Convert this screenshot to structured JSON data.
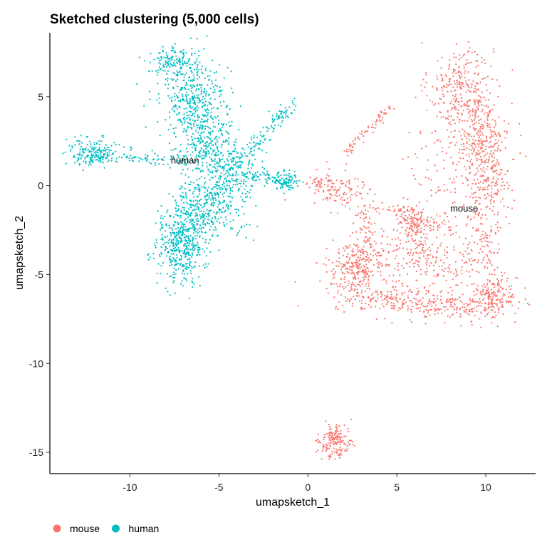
{
  "chart_data": {
    "type": "scatter",
    "title": "Sketched clustering (5,000 cells)",
    "xlabel": "umapsketch_1",
    "ylabel": "umapsketch_2",
    "xlim": [
      -14.5,
      12.8
    ],
    "ylim": [
      -16.2,
      8.6
    ],
    "xticks": [
      -10,
      -5,
      0,
      5,
      10
    ],
    "yticks": [
      5,
      0,
      -5,
      -10,
      -15
    ],
    "xtick_labels": [
      "-10",
      "-5",
      "0",
      "5",
      "10"
    ],
    "ytick_labels": [
      "5",
      "0",
      "-5",
      "-10",
      "-15"
    ],
    "grid": false,
    "legend_position": "bottom-left",
    "series": [
      {
        "name": "mouse",
        "color": "#F8766D",
        "label_point": [
          8.0,
          -1.3
        ],
        "approx_point_count": 2500,
        "clusters": [
          {
            "cx": 8.6,
            "cy": 5.5,
            "sx": 0.9,
            "sy": 1.3,
            "n": 260
          },
          {
            "cx": 9.6,
            "cy": 3.0,
            "sx": 0.9,
            "sy": 1.5,
            "n": 280
          },
          {
            "cx": 10.2,
            "cy": 0.6,
            "sx": 0.6,
            "sy": 1.2,
            "n": 180
          },
          {
            "cx": 9.9,
            "cy": -2.5,
            "sx": 0.5,
            "sy": 1.3,
            "n": 110
          },
          {
            "cx": 10.4,
            "cy": -6.3,
            "sx": 0.7,
            "sy": 0.6,
            "n": 200
          },
          {
            "cx": 7.8,
            "cy": -6.8,
            "sx": 1.4,
            "sy": 0.4,
            "n": 160
          },
          {
            "cx": 4.6,
            "cy": -6.3,
            "sx": 1.5,
            "sy": 0.4,
            "n": 170
          },
          {
            "cx": 2.6,
            "cy": -4.8,
            "sx": 0.8,
            "sy": 0.7,
            "n": 220
          },
          {
            "cx": 3.2,
            "cy": -2.9,
            "sx": 0.4,
            "sy": 1.1,
            "n": 100
          },
          {
            "cx": 1.6,
            "cy": -0.2,
            "sx": 0.9,
            "sy": 0.6,
            "n": 110
          },
          {
            "cx": 5.9,
            "cy": -2.2,
            "sx": 0.5,
            "sy": 0.5,
            "n": 100
          },
          {
            "cx": 5.2,
            "cy": -4.0,
            "sx": 1.4,
            "sy": 0.7,
            "n": 130
          },
          {
            "cx": 7.2,
            "cy": -0.3,
            "sx": 1.4,
            "sy": 2.1,
            "n": 110
          },
          {
            "cx": 8.0,
            "cy": -4.6,
            "sx": 1.0,
            "sy": 0.6,
            "n": 70
          },
          {
            "cx": 1.6,
            "cy": -14.4,
            "sx": 0.45,
            "sy": 0.45,
            "n": 170
          }
        ],
        "segments": [
          {
            "x1": 2.0,
            "y1": 1.8,
            "x2": 4.6,
            "y2": 4.4,
            "n": 70,
            "w": 0.15
          },
          {
            "x1": 3.0,
            "y1": -1.4,
            "x2": 6.3,
            "y2": -1.4,
            "n": 40,
            "w": 0.18
          },
          {
            "x1": 5.8,
            "y1": -2.0,
            "x2": 8.3,
            "y2": -2.4,
            "n": 40,
            "w": 0.2
          },
          {
            "x1": 6.0,
            "y1": -2.1,
            "x2": 6.3,
            "y2": -4.2,
            "n": 30,
            "w": 0.2
          },
          {
            "x1": 0.2,
            "y1": 0.0,
            "x2": 1.5,
            "y2": 0.4,
            "n": 25,
            "w": 0.15
          }
        ]
      },
      {
        "name": "human",
        "color": "#00BFC4",
        "label_point": [
          -7.7,
          1.4
        ],
        "approx_point_count": 2500,
        "clusters": [
          {
            "cx": -7.6,
            "cy": 7.0,
            "sx": 0.6,
            "sy": 0.4,
            "n": 140
          },
          {
            "cx": -6.4,
            "cy": 4.8,
            "sx": 0.9,
            "sy": 1.2,
            "n": 420
          },
          {
            "cx": -5.5,
            "cy": 2.3,
            "sx": 0.8,
            "sy": 0.9,
            "n": 220
          },
          {
            "cx": -12.0,
            "cy": 1.8,
            "sx": 0.8,
            "sy": 0.4,
            "n": 200
          },
          {
            "cx": -4.5,
            "cy": 0.4,
            "sx": 0.9,
            "sy": 0.8,
            "n": 230
          },
          {
            "cx": -6.3,
            "cy": -1.5,
            "sx": 0.9,
            "sy": 0.9,
            "n": 320
          },
          {
            "cx": -7.1,
            "cy": -3.5,
            "sx": 0.7,
            "sy": 1.0,
            "n": 380
          },
          {
            "cx": -1.2,
            "cy": 0.3,
            "sx": 0.4,
            "sy": 0.25,
            "n": 90
          }
        ],
        "segments": [
          {
            "x1": -4.5,
            "y1": 0.8,
            "x2": -0.8,
            "y2": 4.6,
            "n": 140,
            "w": 0.25
          },
          {
            "x1": -10.5,
            "y1": 1.7,
            "x2": -6.5,
            "y2": 1.3,
            "n": 70,
            "w": 0.2
          },
          {
            "x1": -4.0,
            "y1": 0.6,
            "x2": -1.4,
            "y2": 0.3,
            "n": 70,
            "w": 0.2
          },
          {
            "x1": -5.6,
            "y1": 0.0,
            "x2": -3.6,
            "y2": -2.6,
            "n": 50,
            "w": 0.3
          }
        ]
      }
    ]
  }
}
